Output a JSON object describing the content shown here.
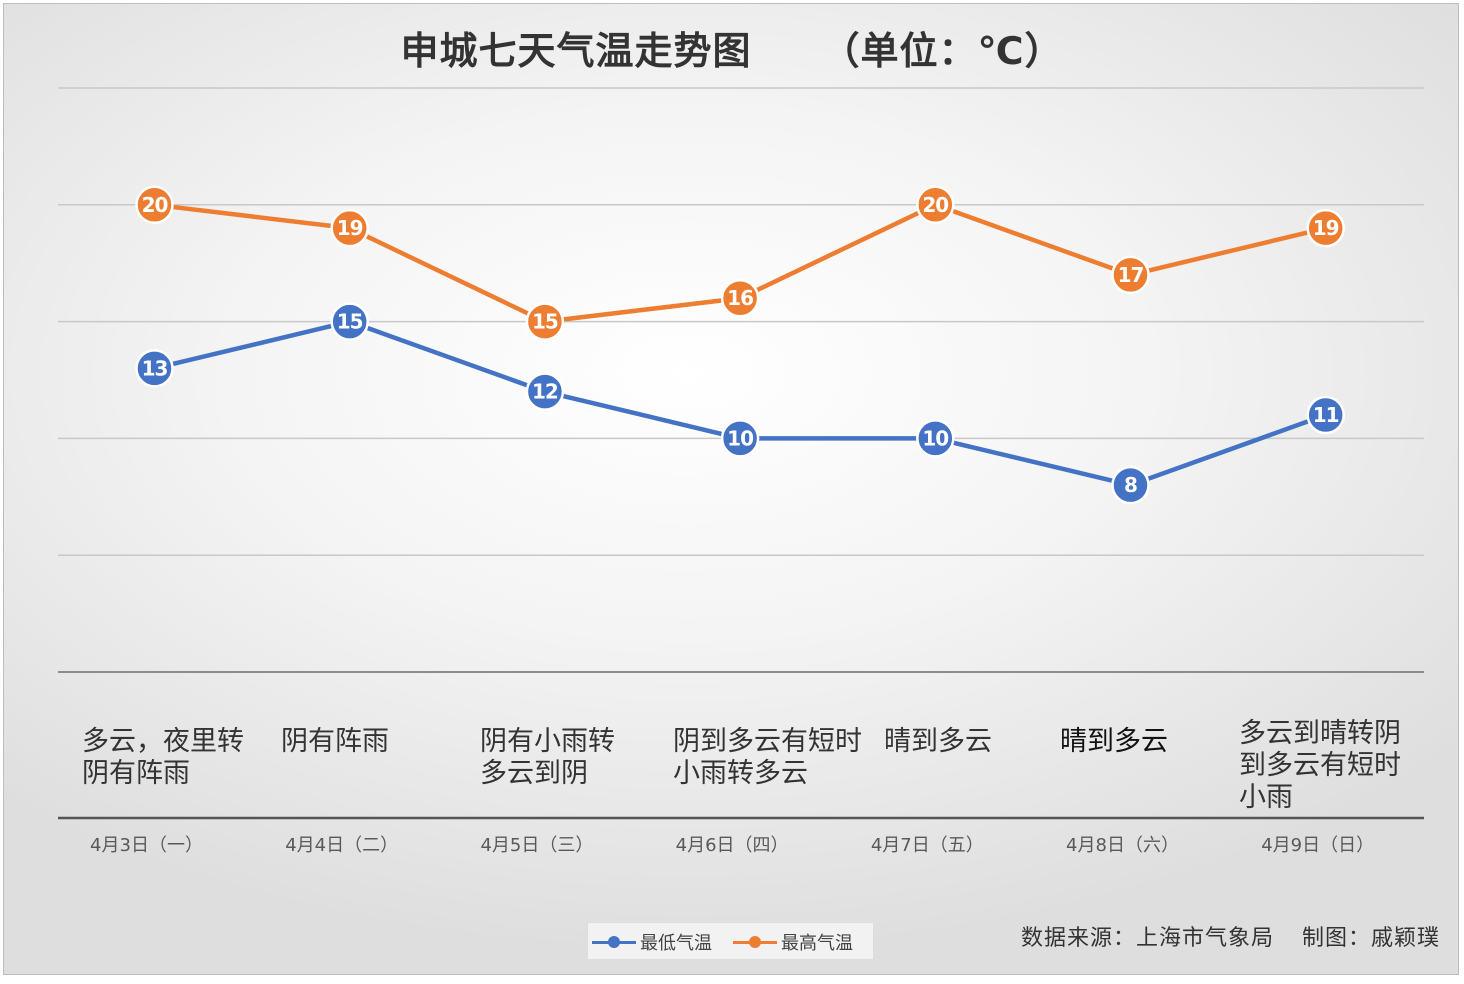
{
  "colors": {
    "low": "#4472c4",
    "high": "#ed7d31",
    "grid": "#c8c8c8",
    "axis": "#555555",
    "tick": "#595959"
  },
  "title": {
    "main": "申城七天气温走势图",
    "unit": "（单位：℃）"
  },
  "weather": [
    "多云，夜里转阴有阵雨",
    "阴有阵雨",
    "阴有小雨转多云到阴",
    "阴到多云有短时小雨转多云",
    "晴到多云",
    "晴到多云",
    "多云到晴转阴到多云有短时小雨"
  ],
  "legend": {
    "low_label": "最低气温",
    "high_label": "最高气温"
  },
  "footer": {
    "source": "数据来源：上海市气象局",
    "credit": "制图：戚颖璞"
  },
  "chart_data": {
    "type": "line",
    "title": "申城七天气温走势图 （单位：℃）",
    "categories": [
      "4月3日（一）",
      "4月4日（二）",
      "4月5日（三）",
      "4月6日（四）",
      "4月7日（五）",
      "4月8日（六）",
      "4月9日（日）"
    ],
    "series": [
      {
        "name": "最低气温",
        "values": [
          13,
          15,
          12,
          10,
          10,
          8,
          11
        ]
      },
      {
        "name": "最高气温",
        "values": [
          20,
          19,
          15,
          16,
          20,
          17,
          19
        ]
      }
    ],
    "ylim": [
      0,
      25
    ],
    "grid": true,
    "legend_position": "bottom",
    "data_labels": true
  }
}
